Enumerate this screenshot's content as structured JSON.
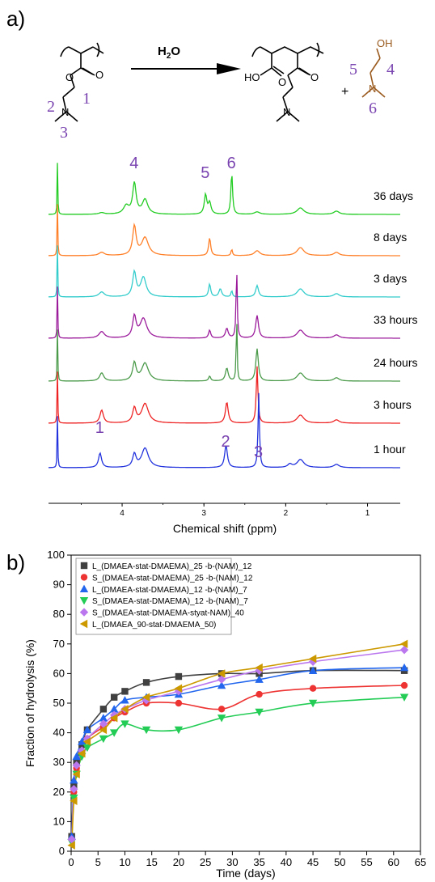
{
  "panels": {
    "a": "a)",
    "b": "b)"
  },
  "scheme": {
    "reagent": "H",
    "reagent_sub": "2",
    "reagent_tail": "O",
    "plus": "+",
    "ho_label": "HO",
    "o_label": "O",
    "oh_label": "OH",
    "n_label": "N",
    "left_numbers": [
      "1",
      "2",
      "3"
    ],
    "product_numbers": [
      "4",
      "5",
      "6"
    ]
  },
  "chart_data": [
    {
      "type": "line",
      "xlabel": "Chemical shift (ppm)",
      "x_ticks": [
        "4",
        "3",
        "2",
        "1"
      ],
      "xlim": [
        4.9,
        0.6
      ],
      "series": [
        {
          "name": "36 days",
          "color": "#22cc22"
        },
        {
          "name": "8 days",
          "color": "#ff7f27"
        },
        {
          "name": "3 days",
          "color": "#33cccc"
        },
        {
          "name": "33 hours",
          "color": "#9b1b9b"
        },
        {
          "name": "24 hours",
          "color": "#4a9a4a"
        },
        {
          "name": "3 hours",
          "color": "#ee2222"
        },
        {
          "name": "1 hour",
          "color": "#2233dd"
        }
      ],
      "peak_labels": [
        {
          "text": "4",
          "ppm": 3.85
        },
        {
          "text": "5",
          "ppm": 2.98
        },
        {
          "text": "6",
          "ppm": 2.66
        },
        {
          "text": "1",
          "ppm": 4.27
        },
        {
          "text": "2",
          "ppm": 2.73
        },
        {
          "text": "3",
          "ppm": 2.33
        }
      ]
    },
    {
      "type": "scatter",
      "xlabel": "Time (days)",
      "ylabel": "Fraction of hydrolysis (%)",
      "xlim": [
        0,
        65
      ],
      "ylim": [
        0,
        100
      ],
      "x_ticks": [
        "0",
        "5",
        "10",
        "15",
        "20",
        "25",
        "30",
        "35",
        "40",
        "45",
        "50",
        "55",
        "60",
        "65"
      ],
      "y_ticks": [
        "0",
        "10",
        "20",
        "30",
        "40",
        "50",
        "60",
        "70",
        "80",
        "90",
        "100"
      ],
      "legend_position": "top-left",
      "series": [
        {
          "name": "L_(DMAEA-stat-DMAEMA)_25 -b-(NAM)_12",
          "color": "#404040",
          "marker": "square",
          "x": [
            0.1,
            0.5,
            1,
            2,
            3,
            6,
            8,
            10,
            14,
            20,
            28,
            35,
            45,
            62
          ],
          "y": [
            5,
            22,
            30,
            36,
            41,
            48,
            52,
            54,
            57,
            59,
            60,
            60,
            61,
            61
          ]
        },
        {
          "name": "S_(DMAEA-stat-DMAEMA)_25 -b-(NAM)_12",
          "color": "#ee3333",
          "marker": "circle",
          "x": [
            0.1,
            0.5,
            1,
            2,
            3,
            6,
            8,
            10,
            14,
            20,
            28,
            35,
            45,
            62
          ],
          "y": [
            4,
            20,
            28,
            33,
            38,
            42,
            45,
            47,
            50,
            50,
            48,
            53,
            55,
            56
          ]
        },
        {
          "name": "L_(DMAEA-stat-DMAEMA)_12 -b-(NAM)_7",
          "color": "#2266ee",
          "marker": "triangle-up",
          "x": [
            0.1,
            0.5,
            1,
            2,
            3,
            6,
            8,
            10,
            14,
            20,
            28,
            35,
            45,
            62
          ],
          "y": [
            5,
            24,
            32,
            37,
            41,
            45,
            48,
            51,
            52,
            53,
            56,
            58,
            61,
            62
          ]
        },
        {
          "name": "S_(DMAEA-stat-DMAEMA)_12 -b-(NAM)_7",
          "color": "#22cc55",
          "marker": "triangle-down",
          "x": [
            0.1,
            0.5,
            1,
            2,
            3,
            6,
            8,
            10,
            14,
            20,
            28,
            35,
            45,
            62
          ],
          "y": [
            3,
            18,
            26,
            32,
            35,
            38,
            40,
            43,
            41,
            41,
            45,
            47,
            50,
            52
          ]
        },
        {
          "name": "S_(DMAEA-stat-DMAEMA-styat-NAM)_40",
          "color": "#bb77ee",
          "marker": "diamond",
          "x": [
            0.1,
            0.5,
            1,
            2,
            3,
            6,
            8,
            10,
            14,
            20,
            28,
            35,
            45,
            62
          ],
          "y": [
            4,
            21,
            29,
            34,
            38,
            43,
            46,
            48,
            51,
            54,
            58,
            61,
            64,
            68
          ]
        },
        {
          "name": "L_(DMAEA_90-stat-DMAEMA_50)",
          "color": "#cc9900",
          "marker": "triangle-left",
          "x": [
            0.1,
            0.5,
            1,
            2,
            3,
            6,
            8,
            10,
            14,
            20,
            28,
            35,
            45,
            62
          ],
          "y": [
            2,
            17,
            26,
            33,
            37,
            41,
            45,
            48,
            52,
            55,
            60,
            62,
            65,
            70
          ]
        }
      ]
    }
  ]
}
